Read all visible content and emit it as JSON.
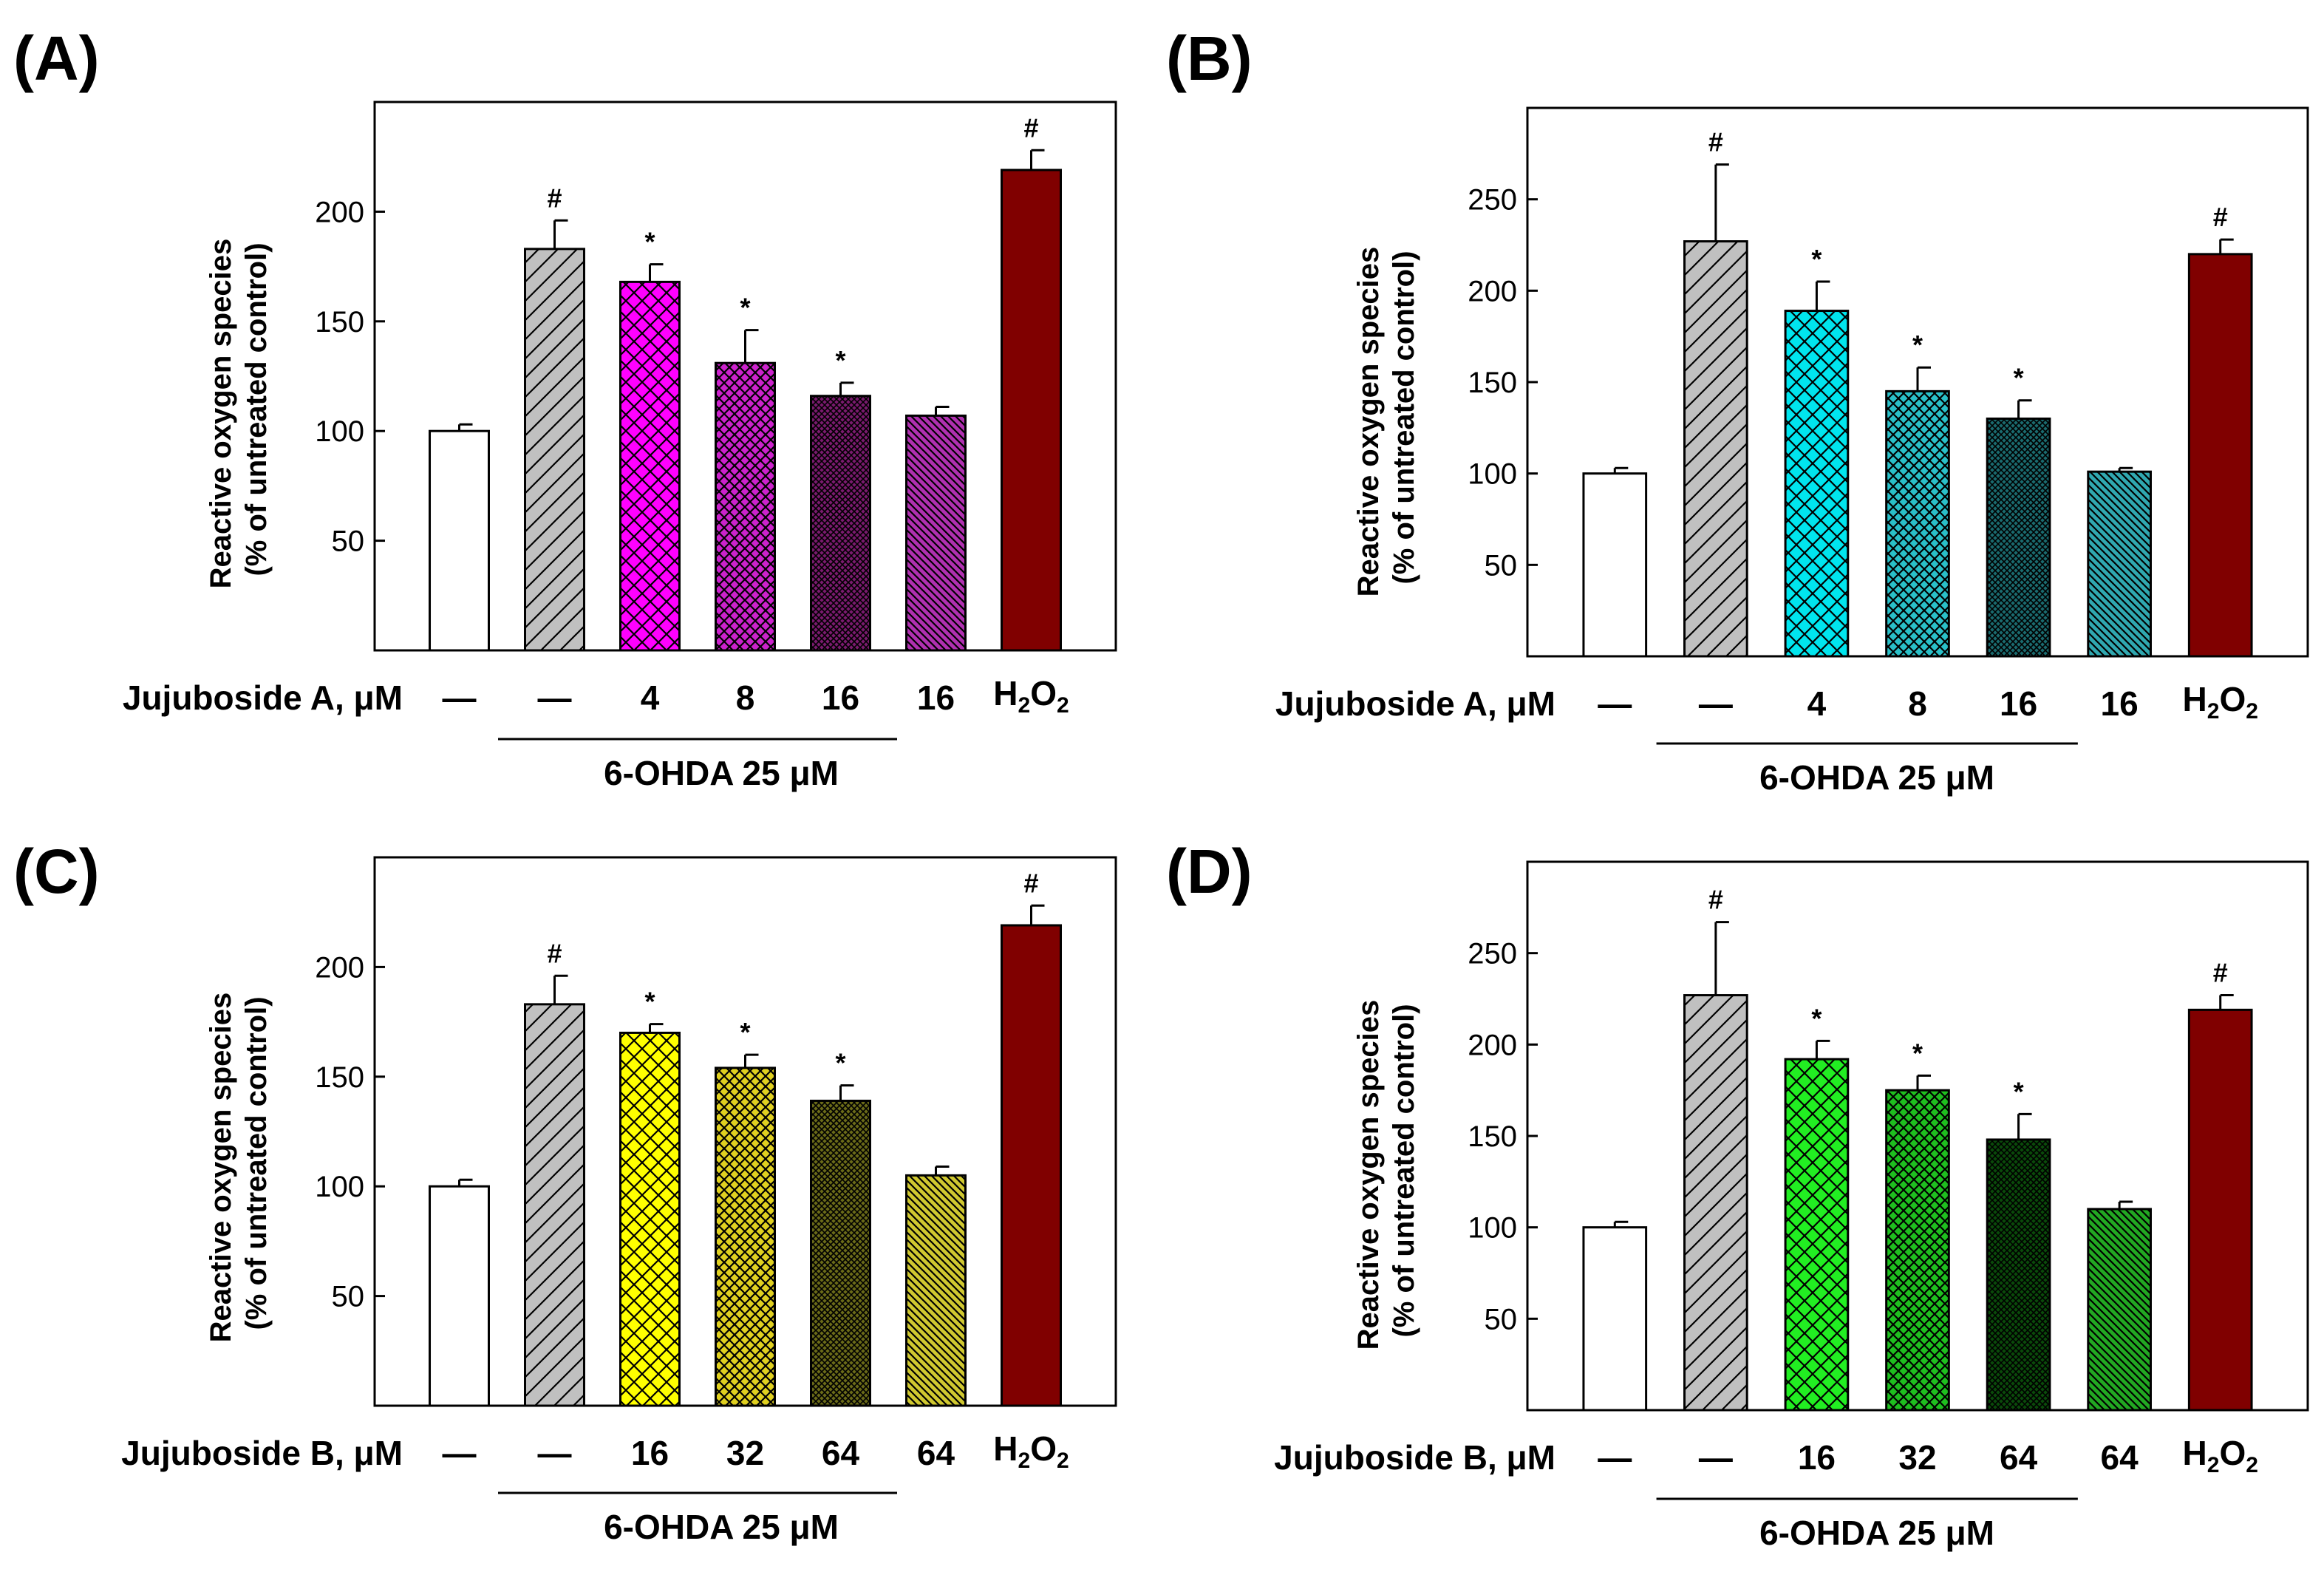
{
  "chart_data": [
    {
      "type": "bar",
      "panel_label": "(A)",
      "ylabel_line1": "Reactive oxygen species",
      "ylabel_line2": "(% of untreated control)",
      "ylim": [
        0,
        250
      ],
      "yticks": [
        50,
        100,
        150,
        200
      ],
      "row_label": "Jujuboside A, μM",
      "categories": [
        "—",
        "—",
        "4",
        "8",
        "16",
        "16",
        "H2O2"
      ],
      "values": [
        100,
        183,
        168,
        131,
        116,
        107,
        219
      ],
      "errors": [
        3,
        13,
        8,
        15,
        6,
        4,
        9
      ],
      "significance": [
        "",
        "#",
        "*",
        "*",
        "*",
        "",
        "#"
      ],
      "patterns": [
        "none",
        "diag",
        "cross",
        "cross-fine",
        "cross-dense",
        "diag-back",
        "none"
      ],
      "fills": [
        "#ffffff",
        "#c0c0c0",
        "#ff00ff",
        "#cc22cc",
        "#7a1a6e",
        "#b030b0",
        "#800000"
      ],
      "group_label": "6-OHDA 25 μM",
      "group_span": [
        1,
        4
      ]
    },
    {
      "type": "bar",
      "panel_label": "(B)",
      "ylabel_line1": "Reactive oxygen species",
      "ylabel_line2": "(% of untreated control)",
      "ylim": [
        0,
        300
      ],
      "yticks": [
        50,
        100,
        150,
        200,
        250
      ],
      "row_label": "Jujuboside A, μM",
      "categories": [
        "—",
        "—",
        "4",
        "8",
        "16",
        "16",
        "H2O2"
      ],
      "values": [
        100,
        227,
        189,
        145,
        130,
        101,
        220
      ],
      "errors": [
        3,
        42,
        16,
        13,
        10,
        2,
        8
      ],
      "significance": [
        "",
        "#",
        "*",
        "*",
        "*",
        "",
        "#"
      ],
      "patterns": [
        "none",
        "diag",
        "cross",
        "cross-fine",
        "cross-dense",
        "diag-back",
        "none"
      ],
      "fills": [
        "#ffffff",
        "#c0c0c0",
        "#00e5ee",
        "#2ac0c8",
        "#1a6a6e",
        "#30a8b0",
        "#800000"
      ],
      "group_label": "6-OHDA 25 μM",
      "group_span": [
        1,
        4
      ]
    },
    {
      "type": "bar",
      "panel_label": "(C)",
      "ylabel_line1": "Reactive oxygen species",
      "ylabel_line2": "(% of untreated control)",
      "ylim": [
        0,
        250
      ],
      "yticks": [
        50,
        100,
        150,
        200
      ],
      "row_label": "Jujuboside B, μM",
      "categories": [
        "—",
        "—",
        "16",
        "32",
        "64",
        "64",
        "H2O2"
      ],
      "values": [
        100,
        183,
        170,
        154,
        139,
        105,
        219
      ],
      "errors": [
        3,
        13,
        4,
        6,
        7,
        4,
        9
      ],
      "significance": [
        "",
        "#",
        "*",
        "*",
        "*",
        "",
        "#"
      ],
      "patterns": [
        "none",
        "diag",
        "cross",
        "cross-fine",
        "cross-dense",
        "diag-back",
        "none"
      ],
      "fills": [
        "#ffffff",
        "#c0c0c0",
        "#ffff00",
        "#e0d020",
        "#6a6a18",
        "#d0c830",
        "#800000"
      ],
      "group_label": "6-OHDA 25 μM",
      "group_span": [
        1,
        4
      ]
    },
    {
      "type": "bar",
      "panel_label": "(D)",
      "ylabel_line1": "Reactive oxygen species",
      "ylabel_line2": "(% of untreated control)",
      "ylim": [
        0,
        300
      ],
      "yticks": [
        50,
        100,
        150,
        200,
        250
      ],
      "row_label": "Jujuboside B, μM",
      "categories": [
        "—",
        "—",
        "16",
        "32",
        "64",
        "64",
        "H2O2"
      ],
      "values": [
        100,
        227,
        192,
        175,
        148,
        110,
        219
      ],
      "errors": [
        3,
        40,
        10,
        8,
        14,
        4,
        8
      ],
      "significance": [
        "",
        "#",
        "*",
        "*",
        "*",
        "",
        "#"
      ],
      "patterns": [
        "none",
        "diag",
        "cross",
        "cross-fine",
        "cross-dense",
        "diag-back",
        "none"
      ],
      "fills": [
        "#ffffff",
        "#c0c0c0",
        "#22ee22",
        "#1fbf1f",
        "#0a4a0a",
        "#22a822",
        "#800000"
      ],
      "group_label": "6-OHDA 25 μM",
      "group_span": [
        1,
        4
      ]
    }
  ]
}
